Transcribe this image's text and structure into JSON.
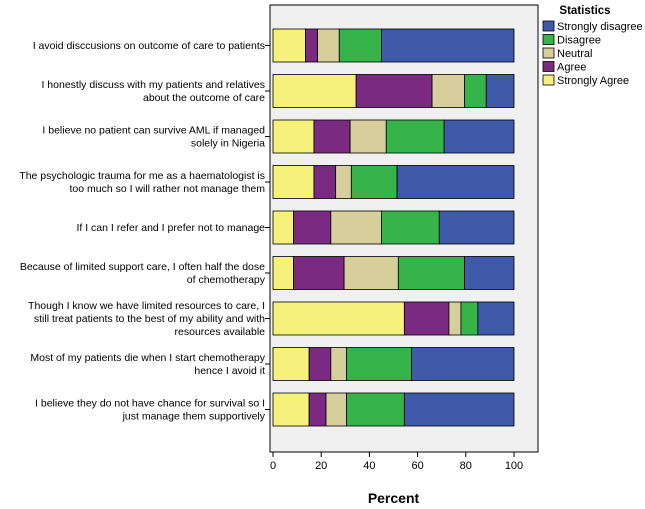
{
  "chart_data": {
    "type": "bar",
    "orientation": "horizontal",
    "stacked": true,
    "xlabel": "Percent",
    "xlim": [
      0,
      100
    ],
    "xticks": [
      0,
      20,
      40,
      60,
      80,
      100
    ],
    "grid": false,
    "legend": {
      "title": "Statistics",
      "placement": "right-top"
    },
    "categories": [
      [
        "I avoid disccusions on outcome of care to patients"
      ],
      [
        "I honestly discuss with my patients and relatives",
        "about the outcome of care"
      ],
      [
        "I believe no patient can survive AML if managed",
        "solely in Nigeria"
      ],
      [
        "The psychologic trauma for me as a haematologist is",
        "too much so I will rather not manage them"
      ],
      [
        "If I can I refer and I prefer not to manage"
      ],
      [
        "Because of limited support care, I often half the dose",
        "of chemotherapy"
      ],
      [
        "Though I know we have limited resources to care, I",
        "still treat patients to the best of my ability and with",
        "resources available"
      ],
      [
        "Most of my patients die when I start chemotherapy",
        "hence I avoid it"
      ],
      [
        "I believe they do not have chance for survival so I",
        "just manage them supportively"
      ]
    ],
    "series": [
      {
        "name": "Strongly Agree",
        "color": "#f5f17a",
        "values": [
          13.5,
          34.5,
          17,
          17,
          8.5,
          8.5,
          54.5,
          15,
          15
        ]
      },
      {
        "name": "Agree",
        "color": "#7b2a82",
        "values": [
          5,
          31.5,
          15,
          9,
          15.5,
          21,
          18.5,
          9,
          7
        ]
      },
      {
        "name": "Neutral",
        "color": "#d6cf9b",
        "values": [
          9,
          13.5,
          15,
          6.5,
          21,
          22.5,
          5,
          6.5,
          8.5
        ]
      },
      {
        "name": "Disagree",
        "color": "#36b44a",
        "values": [
          17.5,
          9,
          24,
          19,
          24,
          27.5,
          7,
          27,
          24
        ]
      },
      {
        "name": "Strongly disagree",
        "color": "#3e5aa8",
        "values": [
          55,
          11.5,
          29,
          48.5,
          31,
          20.5,
          15,
          42.5,
          45.5
        ]
      }
    ],
    "legend_order": [
      "Strongly disagree",
      "Disagree",
      "Neutral",
      "Agree",
      "Strongly Agree"
    ]
  }
}
